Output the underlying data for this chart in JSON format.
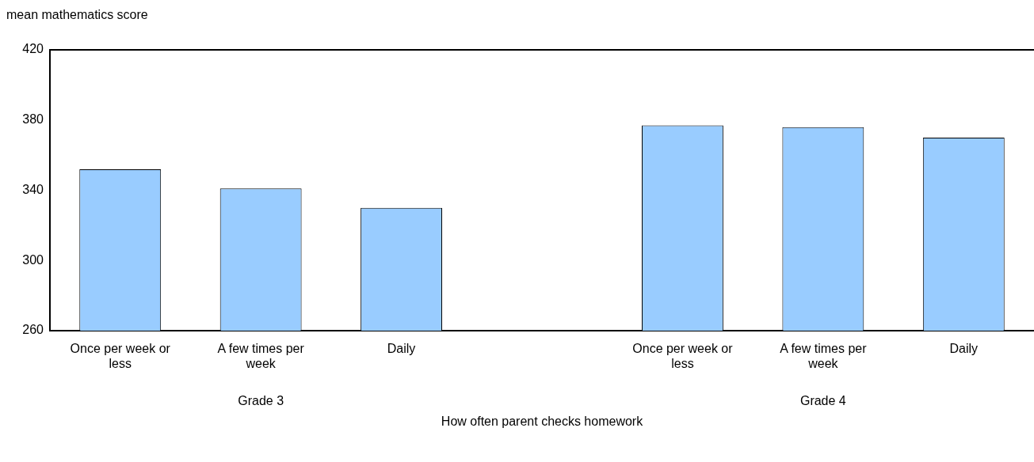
{
  "chart_data": {
    "type": "bar",
    "ylabel": "mean mathematics score",
    "xlabel": "How often parent checks homework",
    "categories": [
      "Once per week or less",
      "A few times per week",
      "Daily",
      null,
      "Once per week or less",
      "A few times per week",
      "Daily"
    ],
    "values": [
      352,
      341,
      330,
      null,
      377,
      376,
      370
    ],
    "color": "#99ccff",
    "ylim": [
      260,
      420
    ],
    "yticks": [
      260,
      300,
      340,
      380,
      420
    ],
    "grid": false,
    "legend": false,
    "annotations": [
      "Grade 3",
      "Grade 4"
    ]
  }
}
